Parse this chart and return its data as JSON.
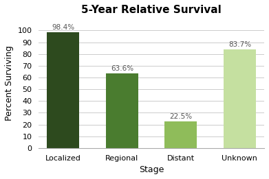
{
  "title": "5-Year Relative Survival",
  "xlabel": "Stage",
  "ylabel": "Percent Surviving",
  "categories": [
    "Localized",
    "Regional",
    "Distant",
    "Unknown"
  ],
  "values": [
    98.4,
    63.6,
    22.5,
    83.7
  ],
  "labels": [
    "98.4%",
    "63.6%",
    "22.5%",
    "83.7%"
  ],
  "bar_colors": [
    "#2d4a1e",
    "#4a7c2f",
    "#8fbc5a",
    "#c5e0a0"
  ],
  "ylim": [
    0,
    110
  ],
  "yticks": [
    0,
    10,
    20,
    30,
    40,
    50,
    60,
    70,
    80,
    90,
    100
  ],
  "background_color": "#ffffff",
  "title_fontsize": 11,
  "label_fontsize": 7.5,
  "axis_label_fontsize": 9,
  "tick_fontsize": 8,
  "bar_width": 0.55,
  "label_color": "#555555",
  "grid_color": "#cccccc",
  "spine_color": "#aaaaaa"
}
